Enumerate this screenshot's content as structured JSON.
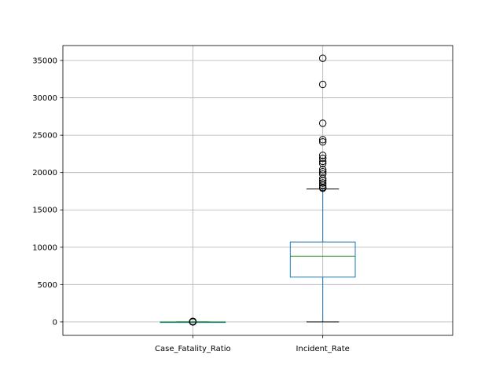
{
  "chart_data": {
    "type": "boxplot",
    "categories": [
      "Case_Fatality_Ratio",
      "Incident_Rate"
    ],
    "ylim": [
      -1800,
      37000
    ],
    "yticks": [
      0,
      5000,
      10000,
      15000,
      20000,
      25000,
      30000,
      35000
    ],
    "grid": true,
    "boxes": [
      {
        "name": "Case_Fatality_Ratio",
        "whisker_low": 0,
        "q1": 0.9,
        "median": 1.4,
        "q3": 2.0,
        "whisker_high": 3.5,
        "outliers": [
          5,
          8,
          12,
          18,
          25,
          35,
          50,
          70
        ]
      },
      {
        "name": "Incident_Rate",
        "whisker_low": 0,
        "q1": 6000,
        "median": 8800,
        "q3": 10700,
        "whisker_high": 17800,
        "outliers": [
          35300,
          31800,
          26600,
          24400,
          24100,
          22300,
          21900,
          21500,
          21200,
          20400,
          20100,
          19800,
          19200,
          18900,
          18600,
          18300,
          18000,
          17900
        ]
      }
    ],
    "colors": {
      "box": "#1f77b4",
      "median": "#2ca02c",
      "whisker_cap": "#000000",
      "grid": "#b0b0b0",
      "axes": "#000000"
    }
  }
}
